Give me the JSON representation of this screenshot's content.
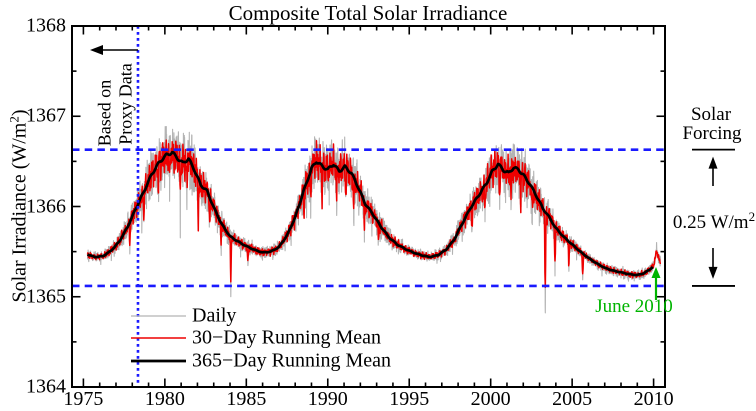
{
  "chart_data": {
    "type": "line",
    "title": "Composite Total Solar Irradiance",
    "ylabel": {
      "text": "Solar Irradiance (W/m",
      "sup": "2",
      "close": ")"
    },
    "xlim": [
      1974.3,
      2010.7
    ],
    "ylim": [
      1364,
      1368
    ],
    "x_major_ticks": [
      1975,
      1980,
      1985,
      1990,
      1995,
      2000,
      2005,
      2010
    ],
    "x_tick_labels": [
      "1975",
      "1980",
      "1985",
      "1990",
      "1995",
      "2000",
      "2005",
      "2010"
    ],
    "x_minor_step": 1,
    "y_major_ticks": [
      1364,
      1365,
      1366,
      1367,
      1368
    ],
    "y_tick_labels": [
      "1364",
      "1365",
      "1366",
      "1367",
      "1368"
    ],
    "y_minor_step": 0.5,
    "grid": false,
    "legend_position": "inside-bottom-left",
    "series": [
      {
        "name": "Daily",
        "color": "#b3b3b3",
        "width": 1.1
      },
      {
        "name": "30−Day Running Mean",
        "color": "#ee0000",
        "width": 1.5
      },
      {
        "name": "365−Day Running Mean",
        "color": "#000000",
        "width": 2.7
      }
    ],
    "data_start_year": 1975.25,
    "data_end_year": 2010.42,
    "smoothed_365d": [
      [
        1975.25,
        1365.47
      ],
      [
        1975.7,
        1365.44
      ],
      [
        1976.2,
        1365.45
      ],
      [
        1976.7,
        1365.51
      ],
      [
        1977.2,
        1365.61
      ],
      [
        1977.7,
        1365.77
      ],
      [
        1978.2,
        1365.97
      ],
      [
        1978.7,
        1366.16
      ],
      [
        1979.2,
        1366.36
      ],
      [
        1979.7,
        1366.5
      ],
      [
        1980.1,
        1366.57
      ],
      [
        1980.45,
        1366.6
      ],
      [
        1980.8,
        1366.53
      ],
      [
        1981.1,
        1366.48
      ],
      [
        1981.45,
        1366.53
      ],
      [
        1981.8,
        1366.41
      ],
      [
        1982.2,
        1366.24
      ],
      [
        1982.6,
        1366.17
      ],
      [
        1983.0,
        1365.99
      ],
      [
        1983.5,
        1365.8
      ],
      [
        1984.0,
        1365.67
      ],
      [
        1984.5,
        1365.61
      ],
      [
        1985.0,
        1365.56
      ],
      [
        1985.5,
        1365.52
      ],
      [
        1986.0,
        1365.49
      ],
      [
        1986.5,
        1365.5
      ],
      [
        1987.0,
        1365.55
      ],
      [
        1987.5,
        1365.68
      ],
      [
        1988.0,
        1365.88
      ],
      [
        1988.5,
        1366.16
      ],
      [
        1989.0,
        1366.42
      ],
      [
        1989.3,
        1366.5
      ],
      [
        1989.7,
        1366.44
      ],
      [
        1990.0,
        1366.41
      ],
      [
        1990.35,
        1366.47
      ],
      [
        1990.7,
        1366.39
      ],
      [
        1991.05,
        1366.44
      ],
      [
        1991.45,
        1366.37
      ],
      [
        1991.85,
        1366.22
      ],
      [
        1992.3,
        1366.03
      ],
      [
        1992.75,
        1365.92
      ],
      [
        1993.25,
        1365.78
      ],
      [
        1993.75,
        1365.66
      ],
      [
        1994.25,
        1365.58
      ],
      [
        1994.75,
        1365.53
      ],
      [
        1995.25,
        1365.49
      ],
      [
        1995.75,
        1365.46
      ],
      [
        1996.25,
        1365.44
      ],
      [
        1996.75,
        1365.46
      ],
      [
        1997.25,
        1365.52
      ],
      [
        1997.75,
        1365.63
      ],
      [
        1998.25,
        1365.81
      ],
      [
        1998.75,
        1365.98
      ],
      [
        1999.25,
        1366.12
      ],
      [
        1999.75,
        1366.26
      ],
      [
        2000.1,
        1366.39
      ],
      [
        2000.45,
        1366.47
      ],
      [
        2000.8,
        1366.4
      ],
      [
        2001.1,
        1366.37
      ],
      [
        2001.4,
        1366.43
      ],
      [
        2001.7,
        1366.41
      ],
      [
        2002.0,
        1366.35
      ],
      [
        2002.4,
        1366.25
      ],
      [
        2002.8,
        1366.12
      ],
      [
        2003.2,
        1365.98
      ],
      [
        2003.6,
        1365.88
      ],
      [
        2004.0,
        1365.76
      ],
      [
        2004.5,
        1365.66
      ],
      [
        2005.0,
        1365.58
      ],
      [
        2005.5,
        1365.5
      ],
      [
        2006.0,
        1365.43
      ],
      [
        2006.5,
        1365.37
      ],
      [
        2007.0,
        1365.32
      ],
      [
        2007.5,
        1365.29
      ],
      [
        2008.0,
        1365.27
      ],
      [
        2008.5,
        1365.25
      ],
      [
        2009.0,
        1365.24
      ],
      [
        2009.4,
        1365.26
      ],
      [
        2009.75,
        1365.3
      ],
      [
        2009.95,
        1365.33
      ]
    ],
    "red_tail": [
      [
        2010.0,
        1365.35
      ],
      [
        2010.1,
        1365.42
      ],
      [
        2010.18,
        1365.52
      ],
      [
        2010.26,
        1365.45
      ],
      [
        2010.35,
        1365.41
      ],
      [
        2010.42,
        1365.39
      ]
    ],
    "dips": [
      [
        1977.85,
        0.25
      ],
      [
        1978.7,
        0.3
      ],
      [
        1979.6,
        0.35
      ],
      [
        1980.3,
        0.35
      ],
      [
        1980.95,
        0.4
      ],
      [
        1981.35,
        0.35
      ],
      [
        1982.05,
        0.5
      ],
      [
        1982.75,
        0.35
      ],
      [
        1983.45,
        0.3
      ],
      [
        1984.05,
        0.6
      ],
      [
        1985.1,
        0.22
      ],
      [
        1988.55,
        0.3
      ],
      [
        1988.95,
        0.42
      ],
      [
        1989.65,
        0.35
      ],
      [
        1990.55,
        0.4
      ],
      [
        1991.1,
        0.35
      ],
      [
        1991.6,
        0.45
      ],
      [
        1992.25,
        0.35
      ],
      [
        1993.1,
        0.25
      ],
      [
        1998.85,
        0.3
      ],
      [
        1999.65,
        0.35
      ],
      [
        2000.55,
        0.45
      ],
      [
        2001.25,
        0.35
      ],
      [
        2001.85,
        0.4
      ],
      [
        2002.55,
        0.35
      ],
      [
        2003.35,
        1.1
      ],
      [
        2003.95,
        0.5
      ],
      [
        2004.8,
        0.3
      ],
      [
        2005.65,
        0.3
      ]
    ],
    "noise_model": {
      "seed": 7,
      "rotation_period_yr": 0.0739,
      "daily_amp": 0.27,
      "monthly_amp": 0.12,
      "activity_floor": 0.18
    },
    "reference_lines": {
      "upper_wm2": 1366.63,
      "lower_wm2": 1365.12,
      "proxy_boundary_year": 1978.35,
      "color": "#1a1aff"
    }
  },
  "annotations": {
    "proxy_line1": "Based on",
    "proxy_line2": "Proxy Data",
    "solar_forcing_line1": "Solar",
    "solar_forcing_line2": "Forcing",
    "forcing_value": {
      "text": "0.25 W/m",
      "sup": "2"
    },
    "june_label": "June 2010",
    "june_color": "#00b400"
  }
}
